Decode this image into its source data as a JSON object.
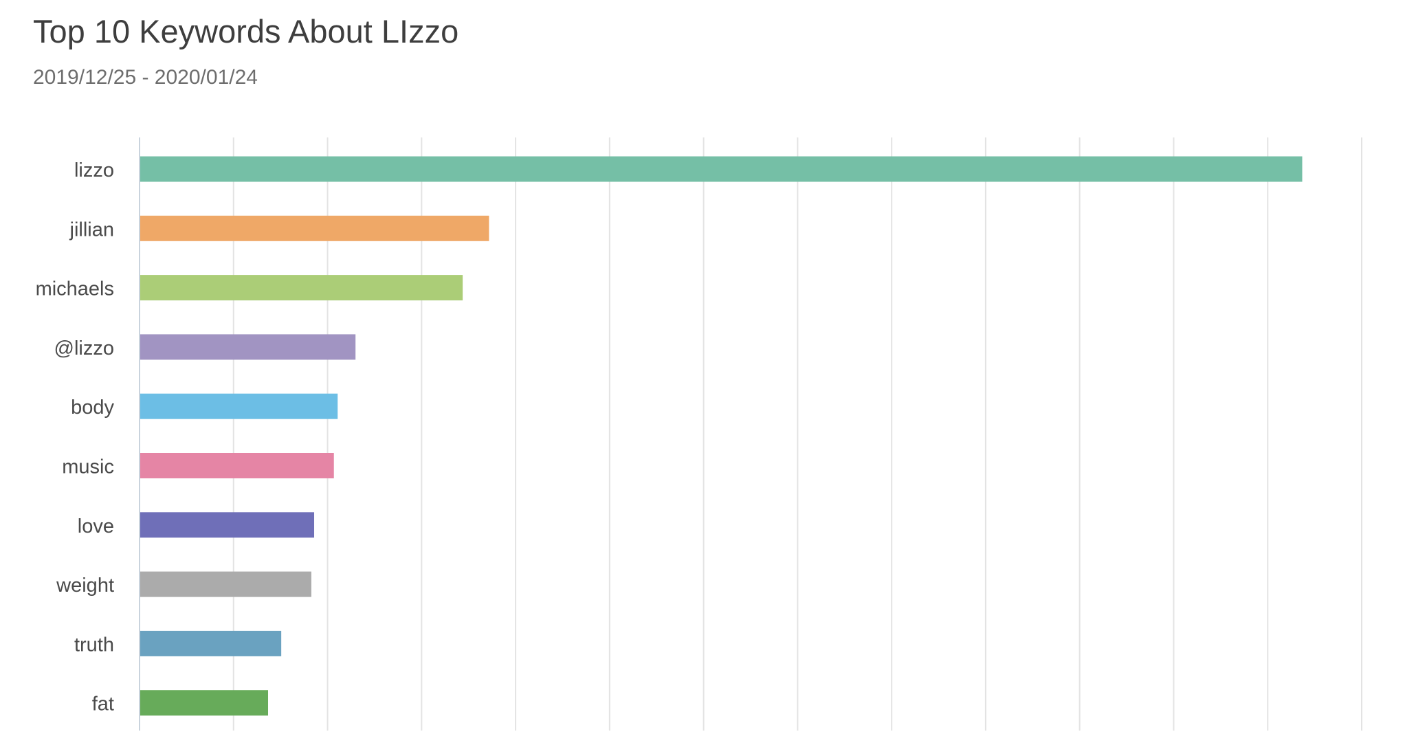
{
  "chart_data": {
    "type": "bar",
    "orientation": "horizontal",
    "title": "Top 10 Keywords About LIzzo",
    "subtitle": "2019/12/25 - 2020/01/24",
    "categories": [
      "lizzo",
      "jillian",
      "michaels",
      "@lizzo",
      "body",
      "music",
      "love",
      "weight",
      "truth",
      "fat"
    ],
    "values": [
      1236,
      371,
      343,
      229,
      210,
      206,
      185,
      182,
      150,
      136
    ],
    "colors": [
      "#75bfa6",
      "#efa867",
      "#abcd77",
      "#a194c2",
      "#6cbee5",
      "#e585a5",
      "#6f6fb8",
      "#ababab",
      "#6aa2c0",
      "#67ab5a"
    ],
    "xlim": [
      0,
      1300
    ],
    "x_tick_labels_shown": false,
    "grid": "vertical",
    "legend": "none",
    "xlabel": "",
    "ylabel": ""
  }
}
